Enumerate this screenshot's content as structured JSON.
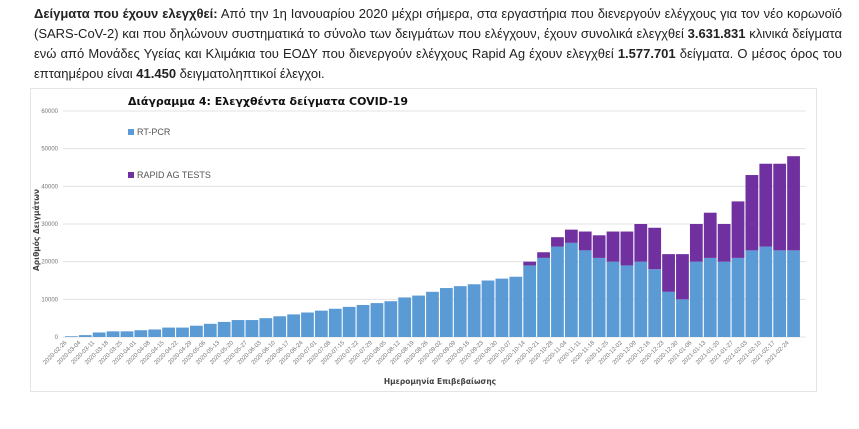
{
  "paragraph": {
    "lead": "Δείγματα που έχουν ελεγχθεί:",
    "text1": " Από την 1η Ιανουαρίου 2020 μέχρι σήμερα, στα εργαστήρια που διενεργούν ελέγχους για τον νέο κορωνοϊό (SARS-CoV-2) και που δηλώνουν συστηματικά το σύνολο των δειγμάτων που ελέγχουν, έχουν συνολικά ελεγχθεί ",
    "total_clinical": "3.631.831",
    "text2": " κλινικά δείγματα ενώ από Μονάδες Υγείας και Κλιμάκια του ΕΟΔΥ που διενεργούν ελέγχους Rapid Ag έχουν ελεγχθεί ",
    "total_rapid": "1.577.701",
    "text3": " δείγματα. Ο μέσος όρος του επταημέρου είναι ",
    "weekly_avg": "41.450",
    "text4": " δειγματοληπτικοί έλεγχοι."
  },
  "chart_data": {
    "type": "bar",
    "stacked": true,
    "title": "Διάγραμμα 4: Ελεγχθέντα δείγματα COVID-19",
    "xlabel": "Ημερομηνία Επιβεβαίωσης",
    "ylabel": "Αριθμός Δειγμάτων",
    "ylim": [
      0,
      60000
    ],
    "yticks": [
      "0",
      "10000",
      "20000",
      "30000",
      "40000",
      "50000",
      "60000"
    ],
    "grid": true,
    "legend_position": "top-left",
    "categories": [
      "2020-02-26",
      "2020-03-04",
      "2020-03-11",
      "2020-03-18",
      "2020-03-25",
      "2020-04-01",
      "2020-04-08",
      "2020-04-15",
      "2020-04-22",
      "2020-04-29",
      "2020-05-06",
      "2020-05-13",
      "2020-05-20",
      "2020-05-27",
      "2020-06-03",
      "2020-06-10",
      "2020-06-17",
      "2020-06-24",
      "2020-07-01",
      "2020-07-08",
      "2020-07-15",
      "2020-07-22",
      "2020-07-29",
      "2020-08-05",
      "2020-08-12",
      "2020-08-19",
      "2020-08-26",
      "2020-09-02",
      "2020-09-09",
      "2020-09-16",
      "2020-09-23",
      "2020-09-30",
      "2020-10-07",
      "2020-10-14",
      "2020-10-21",
      "2020-10-28",
      "2020-11-04",
      "2020-11-11",
      "2020-11-18",
      "2020-11-25",
      "2020-12-02",
      "2020-12-09",
      "2020-12-16",
      "2020-12-23",
      "2020-12-30",
      "2021-01-06",
      "2021-01-13",
      "2021-01-20",
      "2021-01-27",
      "2021-02-03",
      "2021-02-10",
      "2021-02-17",
      "2021-02-24"
    ],
    "series": [
      {
        "name": "RT-PCR",
        "color": "#5b9bd5",
        "values": [
          200,
          500,
          1200,
          1500,
          1500,
          1800,
          2000,
          2500,
          2500,
          3000,
          3500,
          4000,
          4500,
          4500,
          5000,
          5500,
          6000,
          6500,
          7000,
          7500,
          8000,
          8500,
          9000,
          9500,
          10500,
          11000,
          12000,
          13000,
          13500,
          14000,
          15000,
          15500,
          16000,
          19000,
          21000,
          24000,
          25000,
          23000,
          21000,
          20000,
          19000,
          20000,
          18000,
          12000,
          10000,
          20000,
          21000,
          20000,
          21000,
          23000,
          24000,
          23000,
          23000
        ]
      },
      {
        "name": "RAPID AG TESTS",
        "color": "#7030a0",
        "values": [
          0,
          0,
          0,
          0,
          0,
          0,
          0,
          0,
          0,
          0,
          0,
          0,
          0,
          0,
          0,
          0,
          0,
          0,
          0,
          0,
          0,
          0,
          0,
          0,
          0,
          0,
          0,
          0,
          0,
          0,
          0,
          0,
          0,
          1000,
          1500,
          2500,
          3500,
          5000,
          6000,
          8000,
          9000,
          10000,
          11000,
          10000,
          12000,
          10000,
          12000,
          10000,
          15000,
          20000,
          22000,
          23000,
          25000
        ]
      }
    ]
  }
}
